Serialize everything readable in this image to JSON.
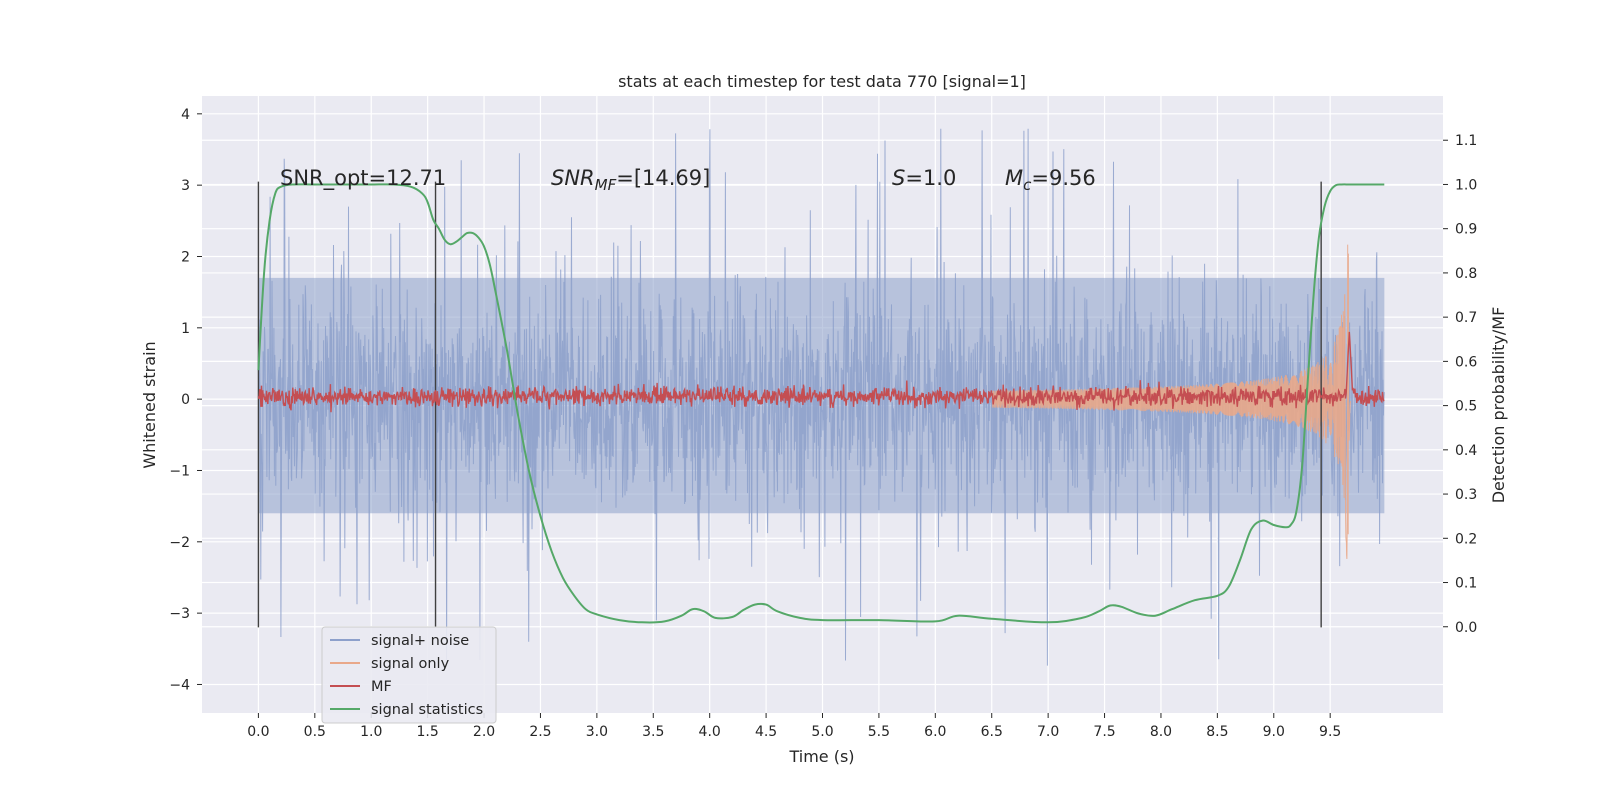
{
  "chart_data": {
    "type": "line",
    "title": "stats at each timestep for test data 770 [signal=1]",
    "xlabel": "Time (s)",
    "ylabel_left": "Whitened strain",
    "ylabel_right": "Detection probability/MF",
    "xlim": [
      -0.5,
      10.5
    ],
    "ylim_left": [
      -4.4,
      4.25
    ],
    "ylim_right": [
      -0.195,
      1.2
    ],
    "xticks": [
      0.0,
      0.5,
      1.0,
      1.5,
      2.0,
      2.5,
      3.0,
      3.5,
      4.0,
      4.5,
      5.0,
      5.5,
      6.0,
      6.5,
      7.0,
      7.5,
      8.0,
      8.5,
      9.0,
      9.5
    ],
    "xtick_labels": [
      "0.0",
      "0.5",
      "1.0",
      "1.5",
      "2.0",
      "2.5",
      "3.0",
      "3.5",
      "4.0",
      "4.5",
      "5.0",
      "5.5",
      "6.0",
      "6.5",
      "7.0",
      "7.5",
      "8.0",
      "8.5",
      "9.0",
      "9.5"
    ],
    "yticks_left": [
      -4,
      -3,
      -2,
      -1,
      0,
      1,
      2,
      3,
      4
    ],
    "ytick_labels_left": [
      "−4",
      "−3",
      "−2",
      "−1",
      "0",
      "1",
      "2",
      "3",
      "4"
    ],
    "yticks_right": [
      0.0,
      0.1,
      0.2,
      0.3,
      0.4,
      0.5,
      0.6,
      0.7,
      0.8,
      0.9,
      1.0,
      1.1
    ],
    "ytick_labels_right": [
      "0.0",
      "0.1",
      "0.2",
      "0.3",
      "0.4",
      "0.5",
      "0.6",
      "0.7",
      "0.8",
      "0.9",
      "1.0",
      "1.1"
    ],
    "grid": true,
    "legend_position": "lower-left",
    "series": [
      {
        "name": "signal+ noise",
        "axis": "left",
        "color": "#8da0cb",
        "style": "dense noise",
        "x_range": [
          0.0,
          9.98
        ],
        "envelope_typical": [
          -1.6,
          1.7
        ],
        "peak_range": [
          -4.0,
          3.87
        ]
      },
      {
        "name": "signal only",
        "axis": "left",
        "color": "#e9a88a",
        "style": "chirp",
        "x_range": [
          6.5,
          9.68
        ],
        "amplitude_end": 2.25,
        "merger_time": 9.67
      },
      {
        "name": "MF",
        "axis": "right",
        "color": "#c44e52",
        "style": "noisy line",
        "x_range": [
          0.0,
          9.98
        ],
        "baseline": 0.52,
        "peak": {
          "x": 9.67,
          "y": 0.67
        }
      },
      {
        "name": "signal statistics",
        "axis": "right",
        "color": "#55a868",
        "x": [
          0.0,
          0.05,
          0.1,
          0.15,
          0.2,
          0.3,
          0.5,
          0.8,
          1.0,
          1.2,
          1.35,
          1.45,
          1.5,
          1.55,
          1.6,
          1.65,
          1.7,
          1.75,
          1.8,
          1.85,
          1.9,
          1.95,
          2.0,
          2.05,
          2.1,
          2.2,
          2.3,
          2.4,
          2.5,
          2.6,
          2.7,
          2.8,
          2.9,
          3.0,
          3.2,
          3.4,
          3.6,
          3.75,
          3.85,
          3.95,
          4.05,
          4.2,
          4.3,
          4.4,
          4.5,
          4.6,
          4.8,
          5.0,
          5.5,
          6.0,
          6.2,
          6.5,
          7.0,
          7.3,
          7.45,
          7.55,
          7.65,
          7.8,
          7.95,
          8.1,
          8.3,
          8.5,
          8.6,
          8.7,
          8.8,
          8.9,
          9.0,
          9.1,
          9.15,
          9.2,
          9.25,
          9.3,
          9.35,
          9.4,
          9.45,
          9.5,
          9.55,
          9.6,
          9.7,
          9.98
        ],
        "y": [
          0.58,
          0.8,
          0.92,
          0.98,
          0.995,
          1.0,
          1.0,
          1.0,
          1.0,
          1.0,
          0.995,
          0.98,
          0.96,
          0.92,
          0.9,
          0.875,
          0.865,
          0.87,
          0.88,
          0.89,
          0.89,
          0.88,
          0.86,
          0.82,
          0.76,
          0.63,
          0.48,
          0.35,
          0.25,
          0.17,
          0.11,
          0.07,
          0.04,
          0.028,
          0.015,
          0.01,
          0.012,
          0.025,
          0.04,
          0.035,
          0.02,
          0.022,
          0.038,
          0.05,
          0.05,
          0.035,
          0.02,
          0.015,
          0.015,
          0.012,
          0.025,
          0.018,
          0.01,
          0.02,
          0.035,
          0.048,
          0.045,
          0.03,
          0.025,
          0.04,
          0.06,
          0.07,
          0.09,
          0.15,
          0.22,
          0.24,
          0.23,
          0.225,
          0.23,
          0.26,
          0.36,
          0.55,
          0.74,
          0.88,
          0.95,
          0.985,
          0.998,
          1.0,
          1.0,
          1.0
        ]
      }
    ],
    "vertical_lines_x": [
      0.0,
      1.57,
      9.42
    ],
    "vertical_lines_yrange_left": [
      -3.2,
      3.05
    ],
    "annotations": {
      "snr_opt": "SNR_opt=12.71",
      "snr_mf_main": "SNR",
      "snr_mf_sub": "MF",
      "snr_mf_tail": "=[14.69]",
      "s_main": "S",
      "s_tail": "=1.0",
      "mc_main": "M",
      "mc_sub": "c",
      "mc_tail": "=9.56"
    }
  }
}
